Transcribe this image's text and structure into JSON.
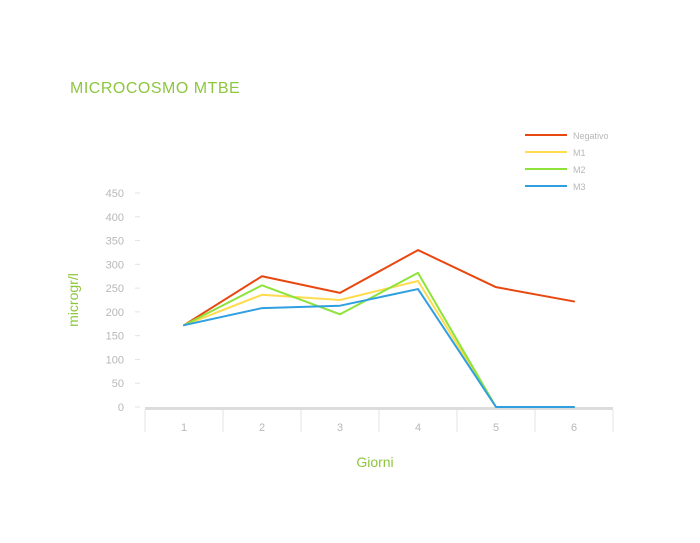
{
  "colors": {
    "accent": "#8dc63f",
    "axis_text": "#b8b8b8",
    "grid": "#e3e3e3",
    "baseline": "#dcdcdc",
    "negativo": "#e8470f",
    "m1": "#ffdb4d",
    "m2": "#8de33a",
    "m3": "#2f9fe0"
  },
  "chart_data": {
    "type": "line",
    "title": "MICROCOSMO MTBE",
    "xlabel": "Giorni",
    "ylabel": "microgr/l",
    "categories": [
      "1",
      "2",
      "3",
      "4",
      "5",
      "6"
    ],
    "yticks": [
      "0",
      "50",
      "100",
      "150",
      "200",
      "250",
      "300",
      "350",
      "400",
      "450"
    ],
    "ylim": [
      0,
      450
    ],
    "grid": false,
    "legend_position": "top-right",
    "series": [
      {
        "name": "Negativo",
        "color_key": "negativo",
        "values": [
          172,
          275,
          240,
          330,
          252,
          222
        ]
      },
      {
        "name": "M1",
        "color_key": "m1",
        "values": [
          172,
          236,
          225,
          265,
          0,
          0
        ]
      },
      {
        "name": "M2",
        "color_key": "m2",
        "values": [
          172,
          256,
          195,
          282,
          0,
          0
        ]
      },
      {
        "name": "M3",
        "color_key": "m3",
        "values": [
          172,
          208,
          213,
          248,
          0,
          0
        ]
      }
    ]
  }
}
